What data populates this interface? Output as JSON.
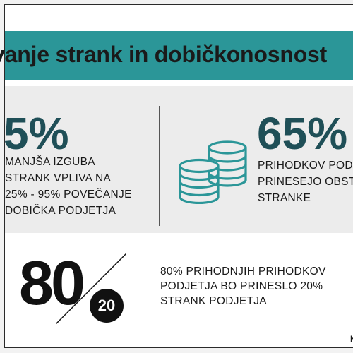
{
  "banner": {
    "title": "vanje strank in dobičkonosnost"
  },
  "stats": {
    "left": {
      "value": "5%",
      "lines": [
        "MANJŠA IZGUBA",
        "STRANK VPLIVA NA",
        "25% - 95% POVEČANJE",
        "DOBIČKA PODJETJA"
      ]
    },
    "right": {
      "value": "65%",
      "lines": [
        "PRIHODKOV POD",
        "PRINESEJO OBSTO",
        "STRANKE"
      ]
    },
    "bottom": {
      "value": "80",
      "badge": "20",
      "lines": [
        "80% PRIHODNJIH PRIHODKOV",
        "PODJETJA BO PRINESLO 20%",
        "STRANK PODJETJA"
      ]
    }
  },
  "corner_mark": "K",
  "colors": {
    "banner": "#2b9698",
    "number": "#1f4f57",
    "icon": "#2b9698"
  },
  "icons": {
    "coins": "coins-icon"
  }
}
